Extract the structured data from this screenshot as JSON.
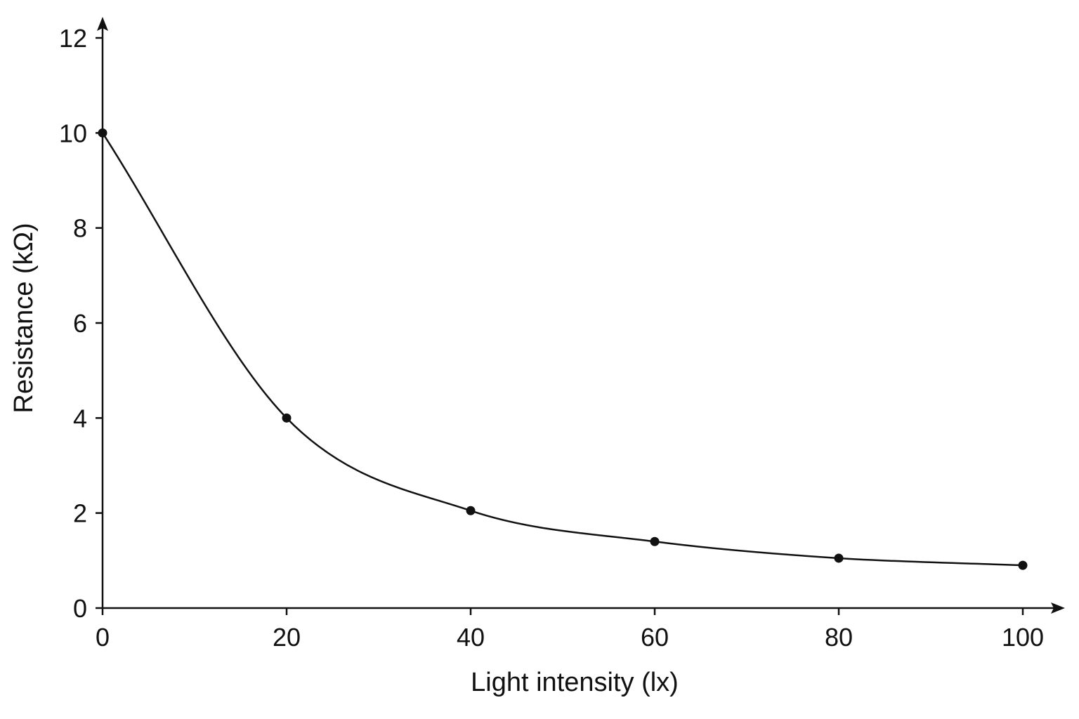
{
  "chart_data": {
    "type": "line",
    "title": "",
    "xlabel": "Light intensity (lx)",
    "ylabel": "Resistance (kΩ)",
    "xlim": [
      0,
      100
    ],
    "ylim": [
      0,
      12
    ],
    "x_ticks": [
      0,
      20,
      40,
      60,
      80,
      100
    ],
    "x_tick_labels": [
      "0",
      "20",
      "40",
      "60",
      "80",
      "100"
    ],
    "y_ticks": [
      0,
      2,
      4,
      6,
      8,
      10,
      12
    ],
    "y_tick_labels": [
      "0",
      "2",
      "4",
      "6",
      "8",
      "10",
      "12"
    ],
    "grid": false,
    "legend": "none",
    "series": [
      {
        "x": [
          0,
          20,
          40,
          60,
          80,
          100
        ],
        "y": [
          10.0,
          4.0,
          2.05,
          1.4,
          1.05,
          0.9
        ],
        "markers": true,
        "smooth": true,
        "color": "#111111"
      }
    ]
  }
}
